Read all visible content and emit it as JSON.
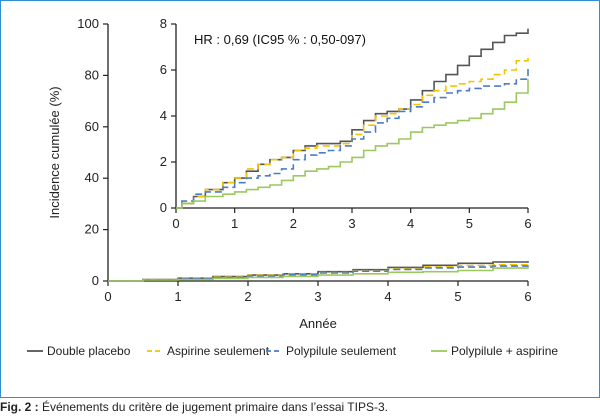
{
  "caption": {
    "label": "Fig. 2 :",
    "text": " Événements du critère de jugement primaire dans l’essai TIPS-3."
  },
  "chart_data": [
    {
      "id": "main",
      "type": "line",
      "step": true,
      "xlabel": "Année",
      "ylabel": "Incidence cumulée (%)",
      "xlim": [
        0,
        6
      ],
      "ylim": [
        0,
        100
      ],
      "xticks": [
        "0",
        "1",
        "2",
        "3",
        "4",
        "5",
        "6"
      ],
      "yticks": [
        "0",
        "20",
        "40",
        "60",
        "80",
        "100"
      ],
      "legend": "bottom",
      "series": [
        {
          "name": "Double placebo",
          "color": "#555555",
          "dash": "solid",
          "x": [
            0,
            0.5,
            1,
            1.5,
            2,
            2.5,
            3,
            3.5,
            4,
            4.5,
            5,
            5.5,
            6
          ],
          "y": [
            0,
            0.6,
            1.1,
            1.7,
            2.3,
            2.8,
            3.6,
            4.4,
            5.3,
            6.1,
            6.9,
            7.4,
            7.8
          ]
        },
        {
          "name": "Aspirine seulement",
          "color": "#f5c400",
          "dash": "dash",
          "x": [
            0,
            0.5,
            1,
            1.5,
            2,
            2.5,
            3,
            3.5,
            4,
            4.5,
            5,
            5.5,
            6
          ],
          "y": [
            0,
            0.6,
            1.1,
            1.6,
            2.2,
            2.7,
            3.3,
            4.0,
            4.8,
            5.5,
            6.0,
            6.3,
            6.7
          ]
        },
        {
          "name": "Polypilule seulement",
          "color": "#4a7cc8",
          "dash": "dash",
          "x": [
            0,
            0.5,
            1,
            1.5,
            2,
            2.5,
            3,
            3.5,
            4,
            4.5,
            5,
            5.5,
            6
          ],
          "y": [
            0,
            0.5,
            0.9,
            1.4,
            1.9,
            2.4,
            3.1,
            3.8,
            4.5,
            5.1,
            5.4,
            5.8,
            6.1
          ]
        },
        {
          "name": "Polypilule + aspirine",
          "color": "#9cc860",
          "dash": "solid",
          "x": [
            0,
            0.5,
            1,
            1.5,
            2,
            2.5,
            3,
            3.5,
            4,
            4.5,
            5,
            5.5,
            6
          ],
          "y": [
            0,
            0.4,
            0.6,
            1.0,
            1.4,
            1.8,
            2.3,
            2.8,
            3.4,
            3.6,
            4.1,
            5.0,
            5.6
          ]
        }
      ]
    },
    {
      "id": "inset",
      "type": "line",
      "step": true,
      "xlim": [
        0,
        6
      ],
      "ylim": [
        0,
        8
      ],
      "xticks": [
        "0",
        "1",
        "2",
        "3",
        "4",
        "5",
        "6"
      ],
      "yticks": [
        "0",
        "2",
        "4",
        "6",
        "8"
      ],
      "annotation": "HR : 0,69 (IC95 % : 0,50-097)",
      "series": [
        {
          "name": "Double placebo",
          "color": "#555555",
          "dash": "solid",
          "x": [
            0,
            0.1,
            0.3,
            0.5,
            0.8,
            1,
            1.2,
            1.4,
            1.6,
            1.8,
            2,
            2.2,
            2.4,
            2.6,
            2.8,
            3,
            3.2,
            3.4,
            3.6,
            3.8,
            4,
            4.2,
            4.4,
            4.6,
            4.8,
            5,
            5.2,
            5.4,
            5.6,
            5.8,
            6
          ],
          "y": [
            0,
            0.2,
            0.5,
            0.8,
            1.1,
            1.3,
            1.6,
            1.9,
            2.1,
            2.2,
            2.5,
            2.7,
            2.8,
            2.8,
            2.9,
            3.4,
            3.8,
            4.1,
            4.2,
            4.3,
            4.7,
            5.1,
            5.5,
            5.8,
            6.2,
            6.6,
            6.9,
            7.2,
            7.5,
            7.6,
            7.8
          ]
        },
        {
          "name": "Aspirine seulement",
          "color": "#f5c400",
          "dash": "dash",
          "x": [
            0,
            0.1,
            0.3,
            0.5,
            0.8,
            1,
            1.2,
            1.4,
            1.6,
            1.8,
            2,
            2.2,
            2.4,
            2.6,
            2.8,
            3,
            3.2,
            3.4,
            3.6,
            3.8,
            4,
            4.2,
            4.4,
            4.6,
            4.8,
            5,
            5.2,
            5.4,
            5.6,
            5.8,
            6
          ],
          "y": [
            0,
            0.2,
            0.5,
            0.8,
            1.1,
            1.3,
            1.7,
            1.9,
            2.1,
            2.2,
            2.5,
            2.6,
            2.7,
            2.7,
            2.8,
            3.2,
            3.6,
            4.0,
            4.1,
            4.3,
            4.5,
            4.9,
            5.1,
            5.3,
            5.4,
            5.5,
            5.6,
            5.8,
            6.0,
            6.4,
            6.7
          ]
        },
        {
          "name": "Polypilule seulement",
          "color": "#4a7cc8",
          "dash": "dash",
          "x": [
            0,
            0.1,
            0.3,
            0.5,
            0.8,
            1,
            1.2,
            1.4,
            1.6,
            1.8,
            2,
            2.2,
            2.4,
            2.6,
            2.8,
            3,
            3.2,
            3.4,
            3.6,
            3.8,
            4,
            4.2,
            4.4,
            4.6,
            4.8,
            5,
            5.2,
            5.4,
            5.6,
            5.8,
            6
          ],
          "y": [
            0,
            0.3,
            0.6,
            0.7,
            0.9,
            1.1,
            1.3,
            1.4,
            1.5,
            1.7,
            2.1,
            2.3,
            2.4,
            2.5,
            2.7,
            3.0,
            3.3,
            3.7,
            3.9,
            4.2,
            4.4,
            4.6,
            4.8,
            5.0,
            5.1,
            5.2,
            5.3,
            5.3,
            5.4,
            5.6,
            6.1
          ]
        },
        {
          "name": "Polypilule + aspirine",
          "color": "#9cc860",
          "dash": "solid",
          "x": [
            0,
            0.1,
            0.3,
            0.5,
            0.8,
            1,
            1.2,
            1.4,
            1.6,
            1.8,
            2,
            2.2,
            2.4,
            2.6,
            2.8,
            3,
            3.2,
            3.4,
            3.6,
            3.8,
            4,
            4.2,
            4.4,
            4.6,
            4.8,
            5,
            5.2,
            5.4,
            5.6,
            5.8,
            6
          ],
          "y": [
            0,
            0.2,
            0.3,
            0.5,
            0.6,
            0.7,
            0.8,
            0.9,
            1.0,
            1.2,
            1.4,
            1.6,
            1.7,
            1.8,
            2.0,
            2.2,
            2.5,
            2.7,
            2.8,
            3.0,
            3.3,
            3.5,
            3.6,
            3.7,
            3.8,
            3.9,
            4.1,
            4.3,
            4.6,
            5.0,
            5.6
          ]
        }
      ]
    }
  ]
}
